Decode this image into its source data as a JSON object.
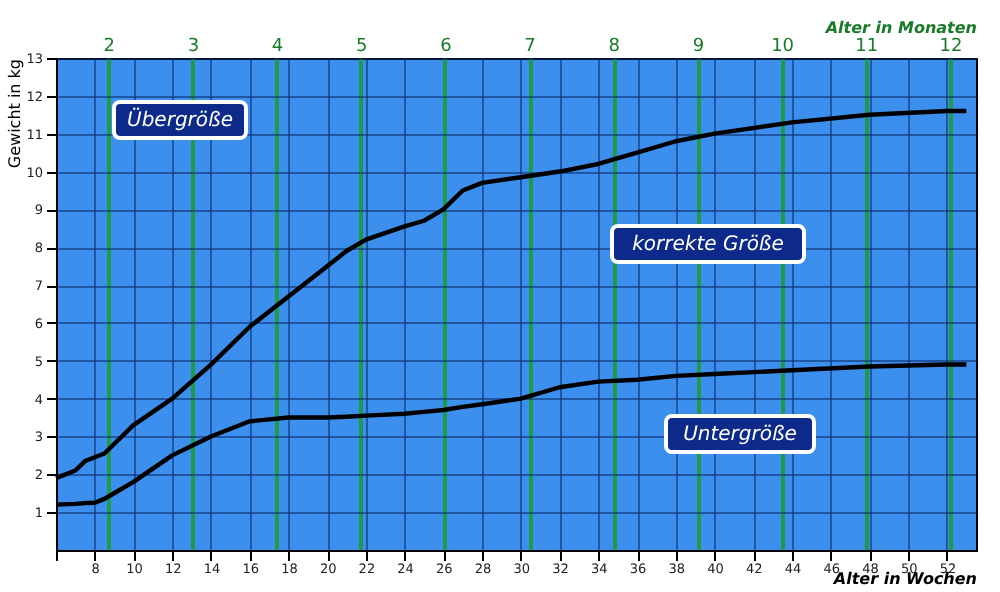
{
  "chart_data": {
    "type": "line",
    "xlabel": "Alter in Wochen",
    "ylabel": "Gewicht in kg",
    "x2label": "Alter in Monaten",
    "x": [
      6,
      7,
      7.5,
      8,
      8.5,
      9,
      10,
      12,
      14,
      16,
      18,
      20,
      21,
      22,
      24,
      25,
      26,
      27,
      28,
      30,
      32,
      34,
      36,
      38,
      40,
      44,
      48,
      52,
      53
    ],
    "series": [
      {
        "color": "#000000",
        "values": [
          1.9,
          2.1,
          2.35,
          2.45,
          2.55,
          2.8,
          3.3,
          4.0,
          4.9,
          5.9,
          6.7,
          7.5,
          7.9,
          8.2,
          8.55,
          8.7,
          9.0,
          9.5,
          9.7,
          9.85,
          10.0,
          10.2,
          10.5,
          10.8,
          11.0,
          11.3,
          11.5,
          11.6,
          11.6
        ]
      },
      {
        "color": "#000000",
        "values": [
          1.2,
          1.22,
          1.24,
          1.25,
          1.35,
          1.5,
          1.8,
          2.5,
          3.0,
          3.4,
          3.5,
          3.5,
          3.52,
          3.55,
          3.6,
          3.65,
          3.7,
          3.78,
          3.85,
          4.0,
          4.3,
          4.45,
          4.5,
          4.6,
          4.65,
          4.75,
          4.85,
          4.9,
          4.9
        ]
      }
    ],
    "xlim": [
      6,
      53.5
    ],
    "xticks": [
      {
        "value": 6,
        "label": null
      },
      8,
      10,
      12,
      14,
      16,
      18,
      20,
      22,
      24,
      26,
      28,
      30,
      32,
      34,
      36,
      38,
      40,
      42,
      44,
      46,
      48,
      50,
      52
    ],
    "ylim": [
      0,
      13
    ],
    "yticks": [
      1,
      2,
      3,
      4,
      5,
      6,
      7,
      8,
      9,
      10,
      11,
      12,
      13
    ],
    "x2lim": [
      1.38,
      12.31
    ],
    "x2ticks": [
      2,
      3,
      4,
      5,
      6,
      7,
      8,
      9,
      10,
      11,
      12
    ],
    "grid": true,
    "annotations": [
      "Übergröße",
      "korrekte Größe",
      "Untergröße"
    ]
  }
}
